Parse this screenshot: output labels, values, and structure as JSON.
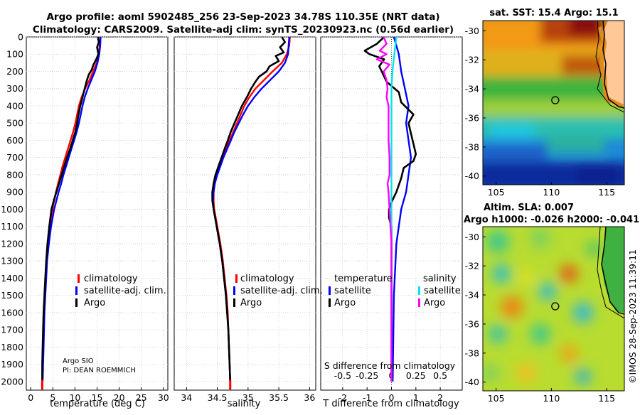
{
  "title": {
    "line1": "Argo profile: aoml 5902485_256 23-Sep-2023 34.78S 110.35E (NRT data)",
    "line2": "Climatology: CARS2009. Satellite-adj clim: synTS_20230923.nc (0.56d earlier)"
  },
  "credit": {
    "line1": "Argo SIO",
    "line2": "PI: DEAN ROEMMICH"
  },
  "stamp": "©IMOS 28-Sep-2023 11:39:11",
  "colors": {
    "climatology": "#ff0000",
    "satellite": "#0000ff",
    "argo": "#000000",
    "t_sat": "#00e5ee",
    "s_argo": "#ff00ff",
    "land": "#ffc896"
  },
  "chart_data": [
    {
      "name": "temperature-panel",
      "type": "line",
      "xlabel": "temperature (deg C)",
      "xlim": [
        -1,
        31
      ],
      "ylim": [
        2050,
        0
      ],
      "xticks": [
        "0",
        "5",
        "10",
        "15",
        "20",
        "25",
        "30"
      ],
      "yticks": [
        "0",
        "100",
        "200",
        "300",
        "400",
        "500",
        "600",
        "700",
        "800",
        "900",
        "1000",
        "1100",
        "1200",
        "1300",
        "1400",
        "1500",
        "1600",
        "1700",
        "1800",
        "1900",
        "2000"
      ],
      "legend": [
        "climatology",
        "satellite-adj. clim.",
        "Argo"
      ],
      "series": [
        {
          "name": "climatology",
          "depth": [
            0,
            50,
            100,
            150,
            200,
            250,
            300,
            350,
            400,
            450,
            500,
            550,
            600,
            650,
            700,
            750,
            800,
            850,
            900,
            950,
            1000,
            1100,
            1200,
            1300,
            1400,
            1500,
            1600,
            1700,
            1800,
            1900,
            2000
          ],
          "values": [
            15.7,
            15.6,
            15.3,
            14.9,
            14.1,
            13.3,
            12.3,
            11.5,
            10.9,
            10.5,
            10.1,
            9.6,
            9.0,
            8.4,
            7.8,
            7.2,
            6.7,
            6.2,
            5.7,
            5.3,
            4.9,
            4.3,
            3.9,
            3.6,
            3.4,
            3.2,
            3.0,
            2.9,
            2.8,
            2.7,
            2.6
          ]
        },
        {
          "name": "satellite-adj. clim.",
          "depth": [
            0,
            50,
            100,
            150,
            200,
            250,
            300,
            350,
            400,
            450,
            500,
            550,
            600,
            650,
            700,
            750,
            800,
            850,
            900,
            950,
            1000,
            1100,
            1200,
            1300,
            1400,
            1500,
            1600,
            1700,
            1800,
            1900,
            2000
          ],
          "values": [
            15.8,
            15.7,
            15.5,
            15.1,
            14.5,
            13.7,
            12.9,
            12.2,
            11.7,
            11.3,
            10.9,
            10.4,
            9.8,
            9.2,
            8.6,
            8.0,
            7.4,
            6.9,
            6.3,
            5.8,
            5.3,
            4.6,
            4.1,
            3.7,
            3.5,
            3.3,
            3.1,
            3.0,
            2.9,
            2.8,
            2.7
          ]
        },
        {
          "name": "Argo",
          "depth": [
            0,
            30,
            60,
            100,
            130,
            160,
            190,
            220,
            260,
            300,
            350,
            400,
            450,
            500,
            550,
            600,
            650,
            700,
            750,
            800,
            850,
            900,
            950,
            1000,
            1100,
            1200,
            1300,
            1400,
            1500,
            1600,
            1700,
            1800,
            1900,
            2000
          ],
          "values": [
            15.2,
            15.4,
            15.0,
            15.3,
            14.8,
            14.2,
            13.8,
            13.1,
            12.6,
            12.2,
            11.7,
            11.2,
            10.8,
            10.5,
            10.1,
            9.5,
            8.9,
            8.2,
            7.6,
            7.0,
            6.4,
            5.8,
            5.2,
            4.7,
            4.2,
            3.8,
            3.5,
            3.3,
            3.1,
            2.9,
            2.8,
            2.7,
            2.6,
            2.6
          ]
        }
      ]
    },
    {
      "name": "salinity-panel",
      "type": "line",
      "xlabel": "salinity",
      "xlim": [
        33.8,
        36.1
      ],
      "ylim": [
        2050,
        0
      ],
      "xticks": [
        "34",
        "34.5",
        "35",
        "35.5",
        "36"
      ],
      "legend": [
        "climatology",
        "satellite-adj. clim.",
        "Argo"
      ],
      "series": [
        {
          "name": "climatology",
          "depth": [
            0,
            50,
            100,
            150,
            200,
            250,
            300,
            350,
            400,
            450,
            500,
            550,
            600,
            650,
            700,
            750,
            800,
            850,
            900,
            950,
            1000,
            1100,
            1200,
            1300,
            1400,
            1500,
            1600,
            1700,
            1800,
            1900,
            2000
          ],
          "values": [
            35.68,
            35.67,
            35.63,
            35.55,
            35.4,
            35.26,
            35.12,
            35.02,
            34.94,
            34.88,
            34.82,
            34.76,
            34.7,
            34.64,
            34.58,
            34.53,
            34.49,
            34.46,
            34.44,
            34.44,
            34.45,
            34.5,
            34.55,
            34.59,
            34.62,
            34.65,
            34.67,
            34.68,
            34.69,
            34.7,
            34.71
          ]
        },
        {
          "name": "satellite-adj. clim.",
          "depth": [
            0,
            50,
            100,
            150,
            200,
            250,
            300,
            350,
            400,
            450,
            500,
            550,
            600,
            650,
            700,
            750,
            800,
            850,
            900,
            950,
            1000,
            1100,
            1200,
            1300,
            1400,
            1500,
            1600,
            1700,
            1800,
            1900,
            2000
          ],
          "values": [
            35.67,
            35.66,
            35.65,
            35.6,
            35.5,
            35.36,
            35.22,
            35.1,
            35.0,
            34.92,
            34.85,
            34.78,
            34.72,
            34.66,
            34.6,
            34.55,
            34.5,
            34.46,
            34.44,
            34.43,
            34.44,
            34.49,
            34.54,
            34.58,
            34.61,
            34.64,
            34.66,
            34.68,
            34.69,
            34.7,
            34.71
          ]
        },
        {
          "name": "Argo",
          "depth": [
            0,
            30,
            60,
            90,
            110,
            140,
            170,
            200,
            230,
            260,
            300,
            350,
            400,
            450,
            500,
            550,
            600,
            650,
            700,
            750,
            800,
            850,
            900,
            950,
            1000,
            1100,
            1200,
            1300,
            1400,
            1500,
            1600,
            1700,
            1800,
            1900,
            2000
          ],
          "values": [
            35.55,
            35.6,
            35.52,
            35.58,
            35.45,
            35.5,
            35.35,
            35.3,
            35.18,
            35.12,
            35.05,
            34.98,
            34.9,
            34.84,
            34.78,
            34.72,
            34.67,
            34.62,
            34.57,
            34.52,
            34.47,
            34.44,
            34.42,
            34.42,
            34.44,
            34.49,
            34.54,
            34.58,
            34.61,
            34.64,
            34.66,
            34.68,
            34.69,
            34.7,
            34.71
          ]
        }
      ]
    },
    {
      "name": "difference-panel",
      "type": "line",
      "xlabel": "T difference from climatology",
      "xlabel2": "S difference from climatology",
      "xlim": [
        -2.9,
        2.9
      ],
      "ylim": [
        2050,
        0
      ],
      "xticks": [
        "-2",
        "-1",
        "0",
        "1",
        "2"
      ],
      "xticks2": [
        "-0.5",
        "-0.25",
        "0",
        "0.25",
        "0.5"
      ],
      "legend_headers": [
        "temperature",
        "salinity"
      ],
      "legend": [
        "satellite",
        "Argo",
        "satellite",
        "Argo"
      ],
      "series": [
        {
          "name": "T satellite",
          "depth": [
            0,
            100,
            150,
            200,
            300,
            400,
            500,
            600,
            700,
            800,
            900,
            1000,
            1200,
            1500,
            2000
          ],
          "values": [
            0.1,
            0.3,
            0.35,
            0.4,
            0.55,
            0.7,
            0.6,
            0.7,
            0.8,
            0.7,
            0.6,
            0.4,
            0.2,
            0.1,
            0.05
          ]
        },
        {
          "name": "T Argo",
          "depth": [
            0,
            40,
            80,
            100,
            130,
            170,
            200,
            260,
            320,
            380,
            450,
            500,
            560,
            620,
            680,
            720,
            760,
            820,
            900,
            960,
            1000,
            1050,
            1100,
            1200,
            1500,
            2000
          ],
          "values": [
            -0.3,
            -0.6,
            -1.1,
            -0.9,
            -0.3,
            -0.5,
            -0.4,
            -0.2,
            0.3,
            0.4,
            0.9,
            0.7,
            0.8,
            0.9,
            1.0,
            0.9,
            0.5,
            0.4,
            0.2,
            0.0,
            -0.1,
            -0.1,
            0.0,
            0.0,
            0.0,
            0.0
          ]
        },
        {
          "name": "S satellite",
          "depth": [
            0,
            100,
            150,
            200,
            300,
            400,
            500,
            600,
            700,
            800,
            900,
            1000,
            1200,
            1500,
            2000
          ],
          "values": [
            0.05,
            0.03,
            0.02,
            0.01,
            0.0,
            0.0,
            0.0,
            0.0,
            0.0,
            0.0,
            0.0,
            0.0,
            0.0,
            0.0,
            0.0
          ]
        },
        {
          "name": "S Argo",
          "depth": [
            0,
            40,
            80,
            100,
            130,
            160,
            200,
            250,
            300,
            350,
            400,
            500,
            600,
            700,
            800,
            850,
            900,
            1000,
            1100,
            1200,
            1500,
            2000
          ],
          "values": [
            -0.08,
            -0.05,
            -0.12,
            -0.05,
            -0.15,
            -0.02,
            -0.08,
            -0.05,
            -0.04,
            -0.05,
            -0.03,
            -0.03,
            -0.03,
            -0.02,
            -0.02,
            -0.04,
            -0.03,
            -0.02,
            -0.01,
            0.0,
            0.0,
            0.0
          ]
        }
      ]
    },
    {
      "name": "sst-map",
      "type": "heatmap",
      "title": "sat. SST: 15.4 Argo: 15.1",
      "xticks": [
        "105",
        "110",
        "115"
      ],
      "yticks": [
        "-30",
        "-32",
        "-34",
        "-36",
        "-38",
        "-40"
      ],
      "xlim": [
        103.8,
        116.6
      ],
      "ylim": [
        -40.6,
        -29.3
      ],
      "argo_position": [
        110.35,
        -34.78
      ]
    },
    {
      "name": "sla-map",
      "type": "heatmap",
      "title": "Altim. SLA: 0.007",
      "subtitle": "Argo h1000: -0.026 h2000: -0.041",
      "xticks": [
        "105",
        "110",
        "115"
      ],
      "yticks": [
        "-30",
        "-32",
        "-34",
        "-36",
        "-38",
        "-40"
      ],
      "xlim": [
        103.8,
        116.6
      ],
      "ylim": [
        -40.6,
        -29.3
      ],
      "argo_position": [
        110.35,
        -34.78
      ]
    }
  ]
}
